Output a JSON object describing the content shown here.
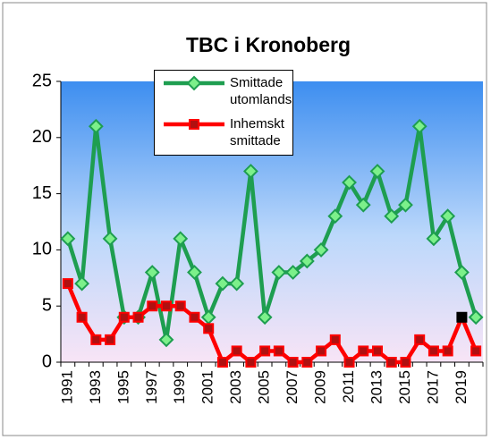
{
  "chart_data": {
    "type": "line",
    "title": "TBC i Kronoberg",
    "categories": [
      "1991",
      null,
      "1993",
      null,
      "1995",
      null,
      "1997",
      null,
      "1999",
      null,
      "2001",
      null,
      "2003",
      null,
      "2005",
      null,
      "2007",
      null,
      "2009",
      null,
      "2011",
      null,
      "2013",
      null,
      "2015",
      null,
      "2017",
      null,
      "2019",
      null
    ],
    "series": [
      {
        "name": "Smittade utomlands",
        "color": "#1e9e50",
        "marker": "diamond",
        "values": [
          11,
          7,
          21,
          11,
          4,
          4,
          8,
          2,
          11,
          8,
          4,
          7,
          7,
          17,
          4,
          8,
          8,
          9,
          10,
          13,
          16,
          14,
          17,
          13,
          14,
          21,
          11,
          13,
          8,
          4
        ]
      },
      {
        "name": "Inhemskt smittade",
        "color": "#ff0000",
        "marker": "square",
        "values": [
          7,
          4,
          2,
          2,
          4,
          4,
          5,
          5,
          5,
          4,
          3,
          0,
          1,
          0,
          1,
          1,
          0,
          0,
          1,
          2,
          0,
          1,
          1,
          0,
          0,
          2,
          1,
          1,
          4,
          1
        ],
        "highlight_points": [
          {
            "index": 28,
            "color": "#000000"
          }
        ]
      }
    ],
    "ylim": [
      0,
      25
    ],
    "yticks": [
      0,
      5,
      10,
      15,
      20,
      25
    ],
    "grid": false,
    "legend": "top"
  }
}
